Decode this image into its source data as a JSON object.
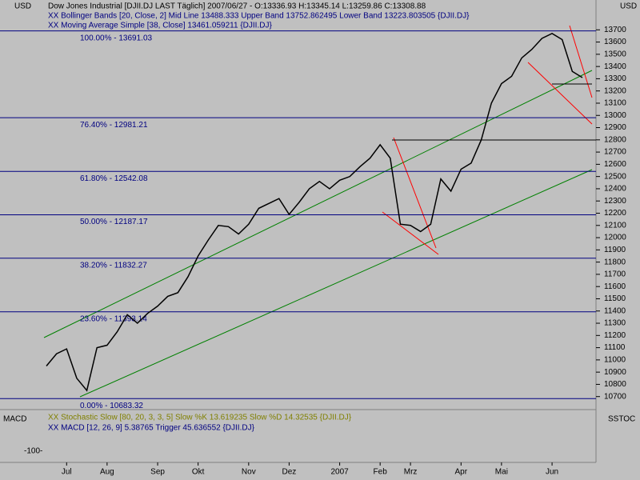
{
  "chart_data": {
    "type": "line",
    "title": "Dow Jones Industrial [DJII.DJ LAST Täglich] 2007/06/27 - O:13336.93 H:13345.14 L:13259.86 C:13308.88",
    "indicator_legend": [
      "XX Bollinger Bands [20, Close, 2] Mid Line 13488.333 Upper Band 13752.862495 Lower Band 13223.803505 {DJII.DJ}",
      "XX Moving Average Simple [38, Close] 13461.059211 {DJII.DJ}"
    ],
    "y_unit_left": "USD",
    "y_unit_right": "USD",
    "categories": [
      null,
      null,
      "Jul",
      null,
      null,
      null,
      "Aug",
      null,
      null,
      null,
      null,
      "Sep",
      null,
      null,
      null,
      "Okt",
      null,
      null,
      null,
      null,
      "Nov",
      null,
      null,
      null,
      "Dez",
      null,
      null,
      null,
      null,
      "2007",
      null,
      null,
      null,
      "Feb",
      null,
      null,
      "Mrz",
      null,
      null,
      null,
      null,
      "Apr",
      null,
      null,
      null,
      "Mai",
      null,
      null,
      null,
      null,
      "Jun",
      null,
      null,
      null
    ],
    "series": [
      {
        "name": "Close",
        "color": "#000000",
        "values": [
          10950,
          11050,
          11090,
          10850,
          10750,
          11100,
          11120,
          11230,
          11370,
          11300,
          11380,
          11440,
          11520,
          11550,
          11680,
          11850,
          11980,
          12100,
          12090,
          12030,
          12110,
          12240,
          12280,
          12320,
          12190,
          12290,
          12400,
          12460,
          12400,
          12470,
          12500,
          12580,
          12650,
          12760,
          12650,
          12110,
          12100,
          12050,
          12110,
          12480,
          12380,
          12560,
          12610,
          12800,
          13100,
          13260,
          13320,
          13470,
          13540,
          13630,
          13670,
          13620,
          13360,
          13309
        ]
      }
    ],
    "ylim": [
      10600,
      13800
    ],
    "yticks": [
      10700,
      10800,
      10900,
      11000,
      11100,
      11200,
      11300,
      11400,
      11500,
      11600,
      11700,
      11800,
      11900,
      12000,
      12100,
      12200,
      12300,
      12400,
      12500,
      12600,
      12700,
      12800,
      12900,
      13000,
      13100,
      13200,
      13300,
      13400,
      13500,
      13600,
      13700
    ],
    "fibonacci": [
      {
        "value": 13691.03,
        "label": "100.00% - 13691.03"
      },
      {
        "value": 12981.21,
        "label": "76.40% - 12981.21"
      },
      {
        "value": 12542.08,
        "label": "61.80% - 12542.08"
      },
      {
        "value": 12187.17,
        "label": "50.00% - 12187.17"
      },
      {
        "value": 11832.27,
        "label": "38.20% - 11832.27"
      },
      {
        "value": 11393.14,
        "label": "23.60% - 11393.14"
      },
      {
        "value": 10683.32,
        "label": "0.00% - 10683.32"
      }
    ],
    "lower_panel": {
      "left_label": "MACD",
      "right_label": "SSTOC",
      "tick_label": "-100-",
      "legend": [
        "XX Stochastic Slow [80, 20, 3, 3, 5] Slow %K 13.619235 Slow %D 14.32535 {DJII.DJ}",
        "XX MACD [12, 26, 9] 5.38765 Trigger 45.636552 {DJII.DJ}"
      ]
    }
  }
}
